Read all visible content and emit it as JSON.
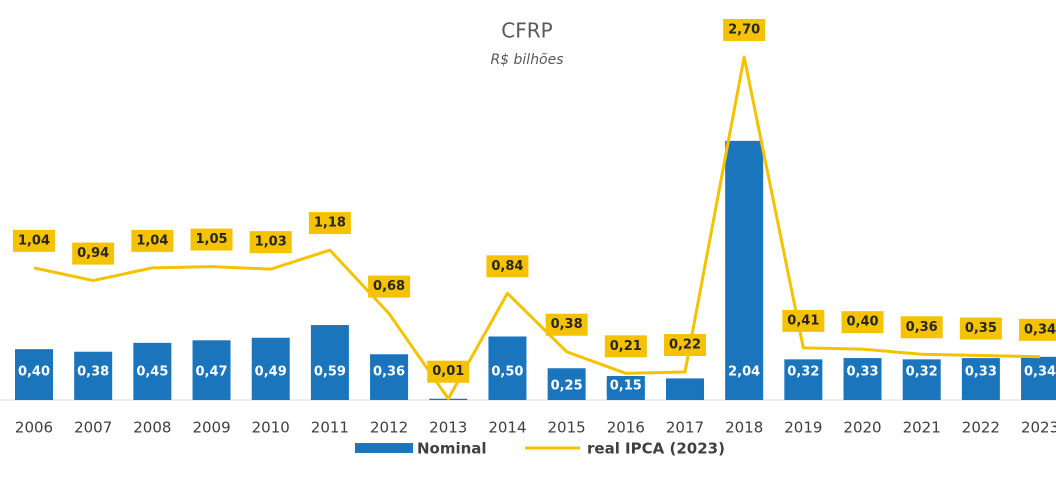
{
  "chart_data": {
    "type": "bar",
    "title": "CFRP",
    "subtitle": "R$ bilhões",
    "categories": [
      "2006",
      "2007",
      "2008",
      "2009",
      "2010",
      "2011",
      "2012",
      "2013",
      "2014",
      "2015",
      "2016",
      "2017",
      "2018",
      "2019",
      "2020",
      "2021",
      "2022",
      "2023"
    ],
    "series": [
      {
        "name": "Nominal",
        "type": "bar",
        "color": "#1b75bc",
        "values": [
          0.4,
          0.38,
          0.45,
          0.47,
          0.49,
          0.59,
          0.36,
          0.01,
          0.5,
          0.25,
          0.15,
          0.17,
          2.04,
          0.32,
          0.33,
          0.32,
          0.33,
          0.34
        ],
        "value_labels": [
          "0,40",
          "0,38",
          "0,45",
          "0,47",
          "0,49",
          "0,59",
          "0,36",
          null,
          "0,50",
          "0,25",
          "0,15",
          null,
          "2,04",
          "0,32",
          "0,33",
          "0,32",
          "0,33",
          "0,34"
        ]
      },
      {
        "name": "real IPCA (2023)",
        "type": "line",
        "color": "#f5c200",
        "values": [
          1.04,
          0.94,
          1.04,
          1.05,
          1.03,
          1.18,
          0.68,
          0.01,
          0.84,
          0.38,
          0.21,
          0.22,
          2.7,
          0.41,
          0.4,
          0.36,
          0.35,
          0.34
        ],
        "value_labels": [
          "1,04",
          "0,94",
          "1,04",
          "1,05",
          "1,03",
          "1,18",
          "0,68",
          "0,01",
          "0,84",
          "0,38",
          "0,21",
          "0,22",
          "2,70",
          "0,41",
          "0,40",
          "0,36",
          "0,35",
          "0,34"
        ]
      }
    ]
  }
}
